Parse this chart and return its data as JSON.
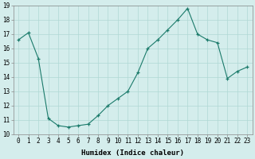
{
  "x": [
    0,
    1,
    2,
    3,
    4,
    5,
    6,
    7,
    8,
    9,
    10,
    11,
    12,
    13,
    14,
    15,
    16,
    17,
    18,
    19,
    20,
    21,
    22,
    23
  ],
  "y": [
    16.6,
    17.1,
    15.3,
    11.1,
    10.6,
    10.5,
    10.6,
    10.7,
    11.3,
    12.0,
    12.5,
    13.0,
    14.3,
    16.0,
    16.6,
    17.3,
    18.0,
    18.8,
    17.0,
    16.6,
    16.4,
    13.9,
    14.4,
    14.7
  ],
  "line_color": "#1a7a6a",
  "marker": "+",
  "bg_color": "#d4edec",
  "grid_color": "#b0d8d4",
  "xlabel": "Humidex (Indice chaleur)",
  "ylim": [
    10,
    19
  ],
  "xlim": [
    -0.5,
    23.5
  ],
  "yticks": [
    10,
    11,
    12,
    13,
    14,
    15,
    16,
    17,
    18,
    19
  ],
  "xtick_labels": [
    "0",
    "1",
    "2",
    "3",
    "4",
    "5",
    "6",
    "7",
    "8",
    "9",
    "10",
    "11",
    "12",
    "13",
    "14",
    "15",
    "16",
    "17",
    "18",
    "19",
    "20",
    "21",
    "22",
    "23"
  ],
  "tick_fontsize": 5.5,
  "xlabel_fontsize": 6.5
}
